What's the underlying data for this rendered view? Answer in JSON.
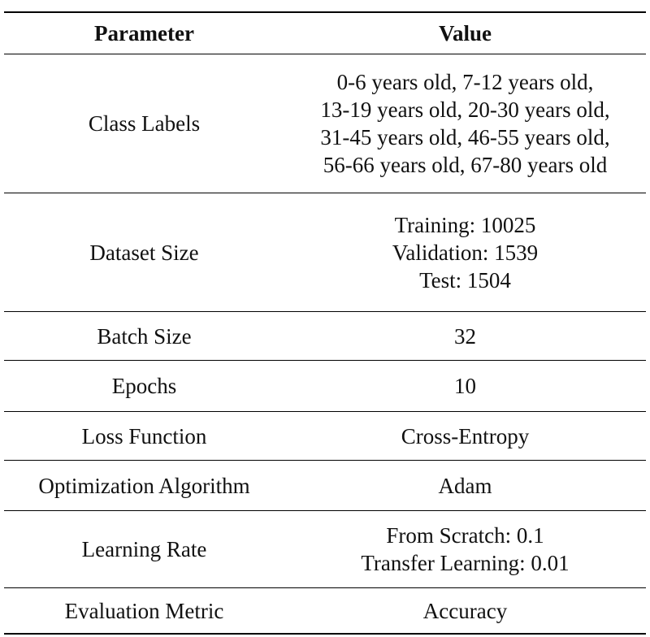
{
  "header": {
    "parameter": "Parameter",
    "value": "Value"
  },
  "rows": [
    {
      "parameter": "Class Labels",
      "value_lines": [
        "0-6 years old, 7-12 years old,",
        "13-19 years old, 20-30 years old,",
        "31-45 years old, 46-55 years old,",
        "56-66 years old, 67-80 years old"
      ]
    },
    {
      "parameter": "Dataset Size",
      "value_lines": [
        "Training: 10025",
        "Validation: 1539",
        "Test: 1504"
      ]
    },
    {
      "parameter": "Batch Size",
      "value_lines": [
        "32"
      ]
    },
    {
      "parameter": "Epochs",
      "value_lines": [
        "10"
      ]
    },
    {
      "parameter": "Loss Function",
      "value_lines": [
        "Cross-Entropy"
      ]
    },
    {
      "parameter": "Optimization Algorithm",
      "value_lines": [
        "Adam"
      ]
    },
    {
      "parameter": "Learning Rate",
      "value_lines": [
        "From Scratch: 0.1",
        "Transfer Learning: 0.01"
      ]
    },
    {
      "parameter": "Evaluation Metric",
      "value_lines": [
        "Accuracy"
      ]
    }
  ]
}
